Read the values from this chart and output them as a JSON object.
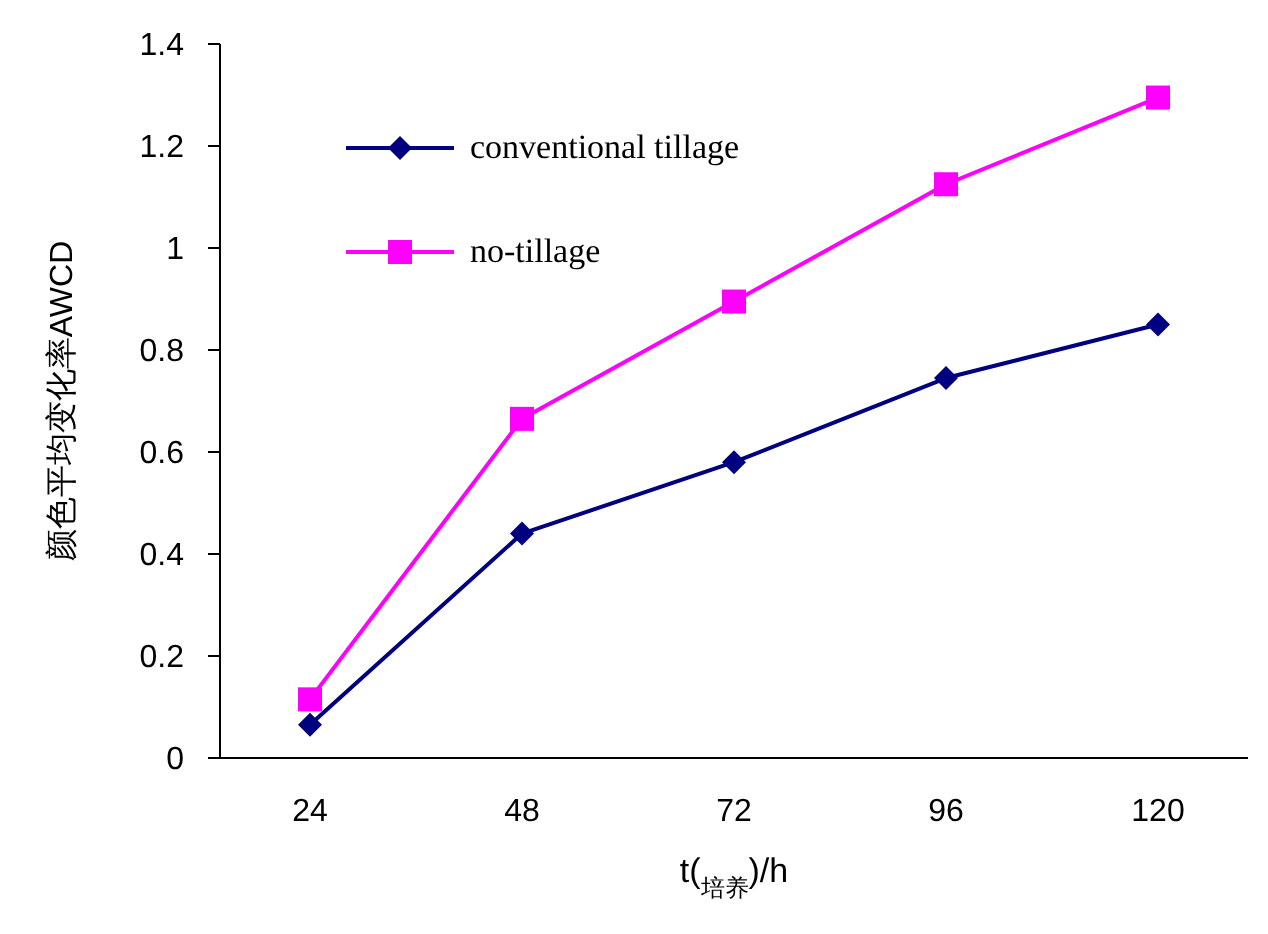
{
  "chart_data": {
    "type": "line",
    "xlabel": "t($_{培养}$)/h",
    "ylabel": "颜色平均变化率AWCD",
    "categories": [
      "24",
      "48",
      "72",
      "96",
      "120"
    ],
    "series": [
      {
        "name": "conventional tillage",
        "color": "#000080",
        "marker": "diamond",
        "values": [
          0.065,
          0.44,
          0.58,
          0.745,
          0.85
        ]
      },
      {
        "name": "no-tillage",
        "color": "#ff00ff",
        "marker": "square",
        "values": [
          0.115,
          0.665,
          0.895,
          1.125,
          1.295
        ]
      }
    ],
    "ylim": [
      0,
      1.4
    ],
    "yticks": [
      0,
      0.2,
      0.4,
      0.6,
      0.8,
      1,
      1.2,
      1.4
    ],
    "grid": false,
    "legend": "top left"
  }
}
